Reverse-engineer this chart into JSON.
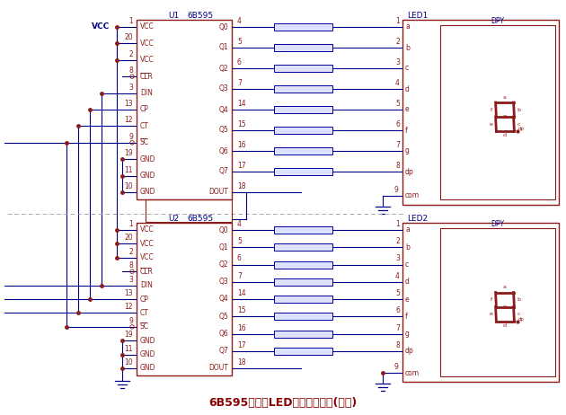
{
  "title": "6B595驱动的LED显示电路设计(共阳)",
  "bg_color": "#ffffff",
  "chip_color": "#8B1A1A",
  "line_color": "#00008B",
  "text_color": "#00008B",
  "label_color": "#8B1A1A",
  "dot_color": "#8B1A1A",
  "resistor_fill": "#dde0ff",
  "resistor_edge": "#000099",
  "chip1_label": "U1",
  "chip1_type": "6B595",
  "chip2_label": "U2",
  "chip2_type": "6B595",
  "led1_label": "LED1",
  "led2_label": "LED2",
  "left_pin_nums": [
    "1",
    "20",
    "2",
    "8",
    "3",
    "13",
    "12",
    "9",
    "19",
    "11",
    "10"
  ],
  "left_pin_labels": [
    "VCC",
    "VCC",
    "VCC",
    "CLR",
    "DIN",
    "CP",
    "CT",
    "SC",
    "GND",
    "GND",
    "GND"
  ],
  "right_pin_nums": [
    "4",
    "5",
    "6",
    "7",
    "14",
    "15",
    "16",
    "17",
    "18"
  ],
  "right_pin_labels": [
    "Q0",
    "Q1",
    "Q2",
    "Q3",
    "Q4",
    "Q5",
    "Q6",
    "Q7",
    "DOUT"
  ],
  "led_labels": [
    "a",
    "b",
    "c",
    "d",
    "e",
    "f",
    "g",
    "dp"
  ],
  "led_right_nums": [
    "1",
    "2",
    "3",
    "4",
    "5",
    "6",
    "7",
    "8"
  ],
  "vcc_label": "VCC",
  "dpy_label": "DPY",
  "com_label": "com",
  "com_pin": "9"
}
